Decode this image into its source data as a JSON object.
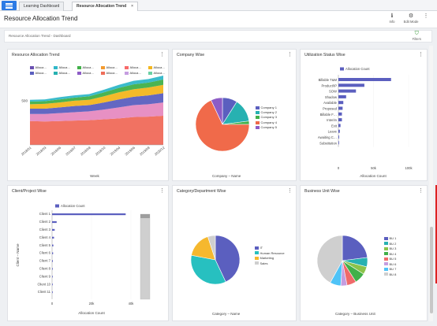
{
  "tabs": [
    {
      "label": "Learning Dashboard",
      "close": ""
    },
    {
      "label": "Resource Allocation Trend",
      "close": "×"
    }
  ],
  "header": {
    "title": "Resource Allocation Trend",
    "info_label": "Info",
    "edit_label": "Edit Mode"
  },
  "breadcrumb": "Resource Allocation Trend - Dashboard",
  "filters_label": "Filters",
  "colors": {
    "accent": "#2c7be5",
    "bar": "#5b5fbf"
  },
  "trend": {
    "title": "Resource Allocation Trend",
    "legend": [
      "Alloca…",
      "Alloca…",
      "Alloca…",
      "Alloca…",
      "Alloca…",
      "Alloca…",
      "Alloca…",
      "Alloca…",
      "Alloca…",
      "Alloca…",
      "Alloca…",
      "Alloca…"
    ],
    "legend_colors": [
      "#6a4fb0",
      "#30b7c9",
      "#41b049",
      "#f39a2f",
      "#f76a6a",
      "#f3b61f",
      "#5b5fbf",
      "#27b1b1",
      "#8d5cc6",
      "#ee6e5a",
      "#c59de0",
      "#6bd0a4"
    ],
    "y_tick": "500",
    "x_ticks": [
      "2018/01",
      "2018/03",
      "2018/06",
      "2018/07",
      "2018/08",
      "2018/10",
      "2019/04",
      "2019/06",
      "2019/09",
      "2020/12"
    ],
    "xlabel": "Week"
  },
  "company": {
    "title": "Company Wise",
    "caption": "Company – Name",
    "legend": [
      "Company 1",
      "Company 2",
      "Company 3",
      "Company 4",
      "Company 5"
    ],
    "colors": [
      "#5b5fbf",
      "#27b1b1",
      "#41b049",
      "#f06a4a",
      "#8d5cc6"
    ]
  },
  "utilization": {
    "title": "Utilization Status Wise",
    "legend": "Allocation Count",
    "categories": [
      "Billable T&M",
      "Product/IP",
      "SOW",
      "Shadow",
      "Available",
      "Proposed",
      "Billable F…",
      "Interim",
      "Exit",
      "Leave",
      "Awaiting C…",
      "Substitution"
    ],
    "x_ticks": [
      "0",
      "50k",
      "100k"
    ],
    "xlabel": "Allocation Count"
  },
  "client": {
    "title": "Client/Project Wise",
    "legend": "Allocation Count",
    "ylabel": "Client – Name",
    "categories": [
      "Client 1",
      "Client 2",
      "Client 3",
      "Client 4",
      "Client 5",
      "Client 6",
      "Client 7",
      "Client 8",
      "Client 9",
      "Client 10",
      "Client 11"
    ],
    "x_ticks": [
      "0",
      "20k",
      "40k"
    ],
    "xlabel": "Allocation Count"
  },
  "category": {
    "title": "Category/Department Wise",
    "caption": "Category – Name",
    "legend": [
      "IT",
      "Human Resource",
      "Marketing",
      "Sales"
    ],
    "colors": [
      "#5b5fbf",
      "#27c0c0",
      "#f5b82e",
      "#cfcfcf"
    ]
  },
  "business": {
    "title": "Business Unit Wise",
    "caption": "Category – Business Unit",
    "legend": [
      "BU 1",
      "BU 2",
      "BU 3",
      "BU 4",
      "BU 5",
      "BU 6",
      "BU 7",
      "BU 8"
    ],
    "colors": [
      "#5b5fbf",
      "#27b1b1",
      "#8bc34a",
      "#41b049",
      "#f06a6a",
      "#c59de0",
      "#4fc3f7",
      "#cfcfcf"
    ]
  },
  "chart_data": [
    {
      "type": "area",
      "title": "Resource Allocation Trend",
      "xlabel": "Week",
      "ylabel": "",
      "ytick": 500,
      "x": [
        "2018/01",
        "2018/03",
        "2018/06",
        "2018/07",
        "2018/08",
        "2018/10",
        "2019/04",
        "2019/06",
        "2019/09",
        "2020/12"
      ],
      "series": [
        {
          "values": [
            270,
            265,
            270,
            275,
            280,
            290,
            300,
            315,
            320,
            330
          ]
        },
        {
          "values": [
            80,
            85,
            90,
            95,
            100,
            110,
            125,
            135,
            140,
            150
          ]
        },
        {
          "values": [
            60,
            60,
            65,
            70,
            70,
            80,
            90,
            95,
            100,
            105
          ]
        },
        {
          "values": [
            50,
            55,
            55,
            60,
            60,
            70,
            80,
            85,
            90,
            95
          ]
        },
        {
          "values": [
            30,
            30,
            35,
            35,
            40,
            45,
            50,
            55,
            55,
            60
          ]
        },
        {
          "values": [
            20,
            20,
            25,
            25,
            25,
            30,
            35,
            40,
            40,
            45
          ]
        }
      ]
    },
    {
      "type": "pie",
      "title": "Company Wise",
      "categories": [
        "Company 1",
        "Company 2",
        "Company 3",
        "Company 4",
        "Company 5"
      ],
      "values": [
        9,
        14,
        2,
        68,
        7
      ]
    },
    {
      "type": "bar",
      "orientation": "horizontal",
      "title": "Utilization Status Wise",
      "xlabel": "Allocation Count",
      "categories": [
        "Billable T&M",
        "Product/IP",
        "SOW",
        "Shadow",
        "Available",
        "Proposed",
        "Billable F…",
        "Interim",
        "Exit",
        "Leave",
        "Awaiting C…",
        "Substitution"
      ],
      "values": [
        75000,
        37000,
        25000,
        11000,
        7000,
        6000,
        5000,
        5000,
        3000,
        2000,
        1000,
        500
      ],
      "xlim": [
        0,
        100000
      ]
    },
    {
      "type": "bar",
      "orientation": "horizontal",
      "title": "Client/Project Wise",
      "xlabel": "Allocation Count",
      "categories": [
        "Client 1",
        "Client 2",
        "Client 3",
        "Client 4",
        "Client 5",
        "Client 6",
        "Client 7",
        "Client 8",
        "Client 9",
        "Client 10",
        "Client 11"
      ],
      "values": [
        56000,
        3500,
        2000,
        1500,
        1000,
        800,
        600,
        500,
        400,
        300,
        200
      ],
      "xlim": [
        0,
        60000
      ]
    },
    {
      "type": "pie",
      "title": "Category/Department Wise",
      "categories": [
        "IT",
        "Human Resource",
        "Marketing",
        "Sales"
      ],
      "values": [
        43,
        35,
        17,
        5
      ]
    },
    {
      "type": "pie",
      "title": "Business Unit Wise",
      "categories": [
        "BU 1",
        "BU 2",
        "BU 3",
        "BU 4",
        "BU 5",
        "BU 6",
        "BU 7",
        "BU 8"
      ],
      "values": [
        23,
        6,
        5,
        7,
        6,
        4,
        7,
        42
      ]
    }
  ]
}
